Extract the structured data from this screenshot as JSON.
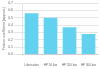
{
  "chart_data": {
    "type": "bar",
    "categories": [
      "Lubrication",
      "HP 50 bar",
      "HP 200 bar",
      "HP 300 bar"
    ],
    "values": [
      0.56,
      0.5,
      0.37,
      0.28
    ],
    "color": "#62d2f0",
    "ylabel": "Friction coefficient (approx.)",
    "ylim": [
      0,
      0.7
    ],
    "yticks": [
      {
        "value": 0.0,
        "label": "0.0"
      },
      0.1,
      0.2,
      0.3,
      0.4,
      0.5,
      0.6,
      0.7
    ],
    "grid": true
  }
}
